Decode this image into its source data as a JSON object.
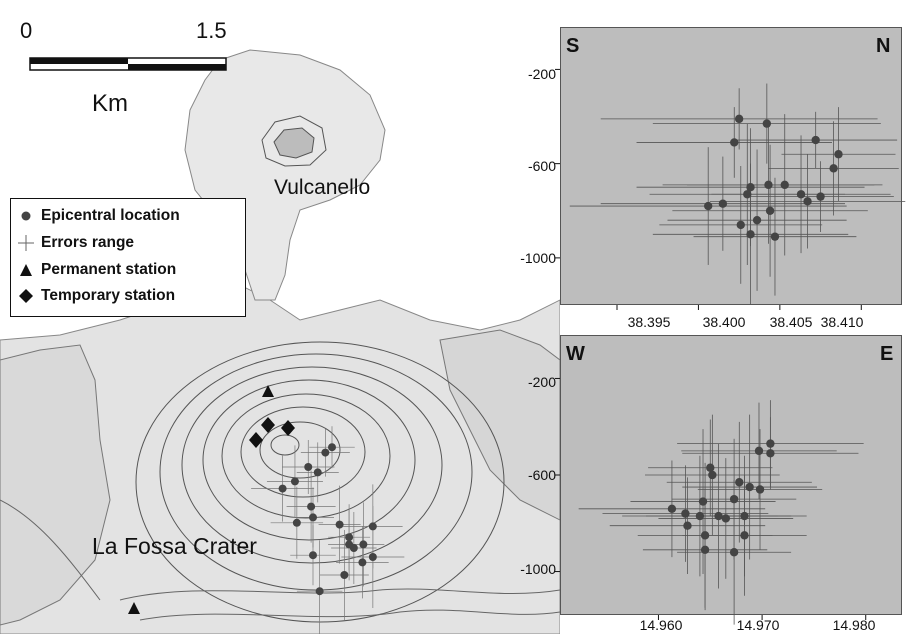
{
  "scale": {
    "min_label": "0",
    "max_label": "1.5",
    "unit_label": "Km"
  },
  "places": {
    "vulcanello": "Vulcanello",
    "crater": "La Fossa Crater"
  },
  "legend": {
    "epicentral": "Epicentral location",
    "errors": "Errors range",
    "permanent": "Permanent station",
    "temporary": "Temporary station"
  },
  "colors": {
    "map_shading": "#e6e6e6",
    "contour": "#555555",
    "panel_bg": "#bdbdbd",
    "marker": "#444444",
    "error_bar": "#555555"
  },
  "icons": {
    "epicentral": "filled-circle",
    "errors": "cross",
    "permanent": "filled-triangle",
    "temporary": "filled-diamond"
  },
  "chart_data": [
    {
      "type": "scatter",
      "corner_left": "S",
      "corner_right": "N",
      "xlabel": "",
      "ylabel": "",
      "xlim": [
        38.3915,
        38.4125
      ],
      "ylim": [
        -1200,
        -20
      ],
      "xticks": [
        "38.395",
        "38.400",
        "38.405",
        "38.410"
      ],
      "yticks": [
        "-200",
        "-600",
        "-1000"
      ],
      "series": [
        {
          "points": [
            {
              "x": 38.4025,
              "y": -410,
              "xerr": 0.0085,
              "yerr": 130
            },
            {
              "x": 38.4042,
              "y": -430,
              "xerr": 0.007,
              "yerr": 170
            },
            {
              "x": 38.4022,
              "y": -510,
              "xerr": 0.006,
              "yerr": 150
            },
            {
              "x": 38.4072,
              "y": -500,
              "xerr": 0.005,
              "yerr": 120
            },
            {
              "x": 38.4006,
              "y": -780,
              "xerr": 0.0085,
              "yerr": 250
            },
            {
              "x": 38.4015,
              "y": -770,
              "xerr": 0.0075,
              "yerr": 200
            },
            {
              "x": 38.403,
              "y": -730,
              "xerr": 0.006,
              "yerr": 300
            },
            {
              "x": 38.4032,
              "y": -700,
              "xerr": 0.007,
              "yerr": 250
            },
            {
              "x": 38.4043,
              "y": -690,
              "xerr": 0.0065,
              "yerr": 250
            },
            {
              "x": 38.4053,
              "y": -690,
              "xerr": 0.006,
              "yerr": 300
            },
            {
              "x": 38.4063,
              "y": -730,
              "xerr": 0.0055,
              "yerr": 250
            },
            {
              "x": 38.4067,
              "y": -760,
              "xerr": 0.006,
              "yerr": 200
            },
            {
              "x": 38.4075,
              "y": -740,
              "xerr": 0.0045,
              "yerr": 150
            },
            {
              "x": 38.4083,
              "y": -620,
              "xerr": 0.004,
              "yerr": 200
            },
            {
              "x": 38.4086,
              "y": -560,
              "xerr": 0.0035,
              "yerr": 200
            },
            {
              "x": 38.4036,
              "y": -840,
              "xerr": 0.0055,
              "yerr": 300
            },
            {
              "x": 38.4044,
              "y": -800,
              "xerr": 0.006,
              "yerr": 280
            },
            {
              "x": 38.4026,
              "y": -860,
              "xerr": 0.005,
              "yerr": 250
            },
            {
              "x": 38.4032,
              "y": -900,
              "xerr": 0.006,
              "yerr": 300
            },
            {
              "x": 38.4047,
              "y": -910,
              "xerr": 0.005,
              "yerr": 250
            }
          ]
        }
      ]
    },
    {
      "type": "scatter",
      "corner_left": "W",
      "corner_right": "E",
      "xlabel": "",
      "ylabel": "",
      "xlim": [
        14.9505,
        14.9835
      ],
      "ylim": [
        -1180,
        -20
      ],
      "xticks": [
        "14.960",
        "14.970",
        "14.980"
      ],
      "yticks": [
        "-200",
        "-600",
        "-1000"
      ],
      "series": [
        {
          "points": [
            {
              "x": 14.9708,
              "y": -470,
              "xerr": 0.009,
              "yerr": 180
            },
            {
              "x": 14.9708,
              "y": -510,
              "xerr": 0.0085,
              "yerr": 150
            },
            {
              "x": 14.9697,
              "y": -500,
              "xerr": 0.0075,
              "yerr": 200
            },
            {
              "x": 14.965,
              "y": -570,
              "xerr": 0.006,
              "yerr": 200
            },
            {
              "x": 14.9652,
              "y": -600,
              "xerr": 0.0065,
              "yerr": 250
            },
            {
              "x": 14.9678,
              "y": -630,
              "xerr": 0.007,
              "yerr": 250
            },
            {
              "x": 14.9688,
              "y": -650,
              "xerr": 0.0065,
              "yerr": 300
            },
            {
              "x": 14.9698,
              "y": -660,
              "xerr": 0.006,
              "yerr": 250
            },
            {
              "x": 14.9673,
              "y": -700,
              "xerr": 0.006,
              "yerr": 250
            },
            {
              "x": 14.9643,
              "y": -710,
              "xerr": 0.007,
              "yerr": 300
            },
            {
              "x": 14.9613,
              "y": -740,
              "xerr": 0.009,
              "yerr": 200
            },
            {
              "x": 14.9626,
              "y": -760,
              "xerr": 0.008,
              "yerr": 200
            },
            {
              "x": 14.964,
              "y": -770,
              "xerr": 0.0075,
              "yerr": 250
            },
            {
              "x": 14.9658,
              "y": -770,
              "xerr": 0.007,
              "yerr": 300
            },
            {
              "x": 14.9665,
              "y": -780,
              "xerr": 0.0065,
              "yerr": 250
            },
            {
              "x": 14.9683,
              "y": -770,
              "xerr": 0.006,
              "yerr": 250
            },
            {
              "x": 14.9628,
              "y": -810,
              "xerr": 0.0075,
              "yerr": 200
            },
            {
              "x": 14.9645,
              "y": -850,
              "xerr": 0.0065,
              "yerr": 300
            },
            {
              "x": 14.9683,
              "y": -850,
              "xerr": 0.006,
              "yerr": 250
            },
            {
              "x": 14.9645,
              "y": -910,
              "xerr": 0.006,
              "yerr": 250
            },
            {
              "x": 14.9673,
              "y": -920,
              "xerr": 0.0055,
              "yerr": 300
            }
          ]
        }
      ]
    }
  ]
}
